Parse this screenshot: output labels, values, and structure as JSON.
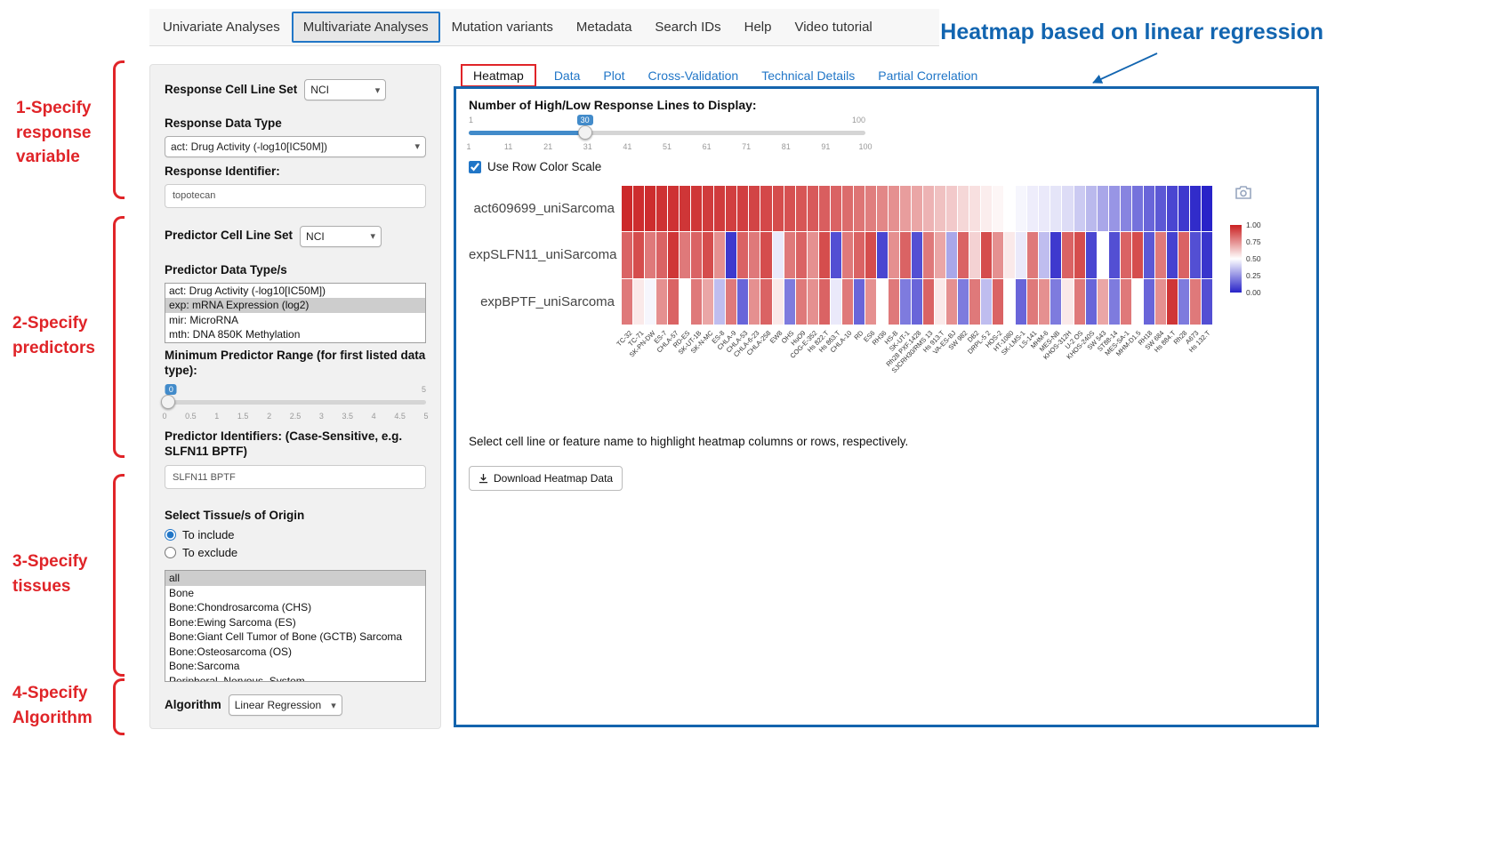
{
  "nav": {
    "items": [
      "Univariate Analyses",
      "Multivariate Analyses",
      "Mutation variants",
      "Metadata",
      "Search IDs",
      "Help",
      "Video tutorial"
    ],
    "active": "Multivariate Analyses"
  },
  "annotations": {
    "heading": "Heatmap based on linear regression",
    "label1": "1-Specify response variable",
    "label2": "2-Specify predictors",
    "label3": "3-Specify tissues",
    "label4": "4-Specify Algorithm",
    "accent_red": "#e02428",
    "accent_blue": "#1265b0"
  },
  "sidebar": {
    "response_cell_line_set": {
      "label": "Response Cell Line Set",
      "value": "NCI"
    },
    "response_data_type": {
      "label": "Response Data Type",
      "value": "act: Drug Activity (-log10[IC50M])"
    },
    "response_identifier": {
      "label": "Response Identifier:",
      "value": "topotecan"
    },
    "predictor_cell_line_set": {
      "label": "Predictor Cell Line Set",
      "value": "NCI"
    },
    "predictor_data_types": {
      "label": "Predictor Data Type/s",
      "options": [
        "act: Drug Activity (-log10[IC50M])",
        "exp: mRNA Expression (log2)",
        "mir: MicroRNA",
        "mth: DNA 850K Methylation"
      ],
      "selected": "exp: mRNA Expression (log2)"
    },
    "min_predictor_range": {
      "label": "Minimum Predictor Range (for first listed data type):",
      "value": "0",
      "min": 0,
      "max": 5,
      "max_label": "5",
      "ticks": [
        "0",
        "0.5",
        "1",
        "1.5",
        "2",
        "2.5",
        "3",
        "3.5",
        "4",
        "4.5",
        "5"
      ]
    },
    "predictor_identifiers": {
      "label": "Predictor Identifiers: (Case-Sensitive, e.g. SLFN11 BPTF)",
      "value": "SLFN11 BPTF"
    },
    "tissues": {
      "label": "Select Tissue/s of Origin",
      "radio_include": "To include",
      "radio_exclude": "To exclude",
      "selected_radio": "To include",
      "options": [
        "all",
        "Bone",
        "Bone:Chondrosarcoma (CHS)",
        "Bone:Ewing Sarcoma (ES)",
        "Bone:Giant Cell Tumor of Bone (GCTB) Sarcoma",
        "Bone:Osteosarcoma (OS)",
        "Bone:Sarcoma",
        "Peripheral_Nervous_System"
      ],
      "selected": "all"
    },
    "algorithm": {
      "label": "Algorithm",
      "value": "Linear Regression"
    }
  },
  "main": {
    "tabs": [
      "Heatmap",
      "Data",
      "Plot",
      "Cross-Validation",
      "Technical Details",
      "Partial Correlation"
    ],
    "active_tab": "Heatmap",
    "slider": {
      "label": "Number of High/Low Response Lines to Display:",
      "min": 1,
      "max": 100,
      "value": 30,
      "min_label": "1",
      "max_label": "100",
      "value_label": "30",
      "ticks": [
        "1",
        "11",
        "21",
        "31",
        "41",
        "51",
        "61",
        "71",
        "81",
        "91",
        "100"
      ]
    },
    "row_color_scale": {
      "label": "Use Row Color Scale",
      "checked": true
    },
    "hint": "Select cell line or feature name to highlight heatmap columns or rows, respectively.",
    "download_button": "Download Heatmap Data"
  },
  "chart_data": {
    "type": "heatmap",
    "rows": [
      "act609699_uniSarcoma",
      "expSLFN11_uniSarcoma",
      "expBPTF_uniSarcoma"
    ],
    "columns": [
      "TC-32",
      "TC-71",
      "SK-PN-DW",
      "ES-7",
      "CHLA-57",
      "RD-ES",
      "SK-UT-1B",
      "SK-N-MC",
      "ES-8",
      "CHLA-9",
      "CHLA-53",
      "CHLA-6-23",
      "CHLA-258",
      "EW8",
      "OHS",
      "HuO9",
      "COG-E-352",
      "Hs 822.T",
      "Hs 863.T",
      "CHLA-10",
      "RD",
      "ES6",
      "RH36",
      "HS-B",
      "SK-UT-1",
      "Rh28 PXF.1428",
      "SJCRH30/RMS 13",
      "Hs 913.T",
      "VA-ES-BJ",
      "SW 982",
      "DB2",
      "DRPL-5 2",
      "HOS-2",
      "HT-1080",
      "SK-LMS-1",
      "LS-141",
      "MHM-6",
      "MES-NB",
      "KHOS-312H",
      "U-2 OS",
      "KHOS-240S",
      "SW 543",
      "ST88-14",
      "MES-SA-1",
      "MHM-D1.5",
      "RH18",
      "SW 684",
      "Hs 884.T",
      "Rh28",
      "A673",
      "Hs 132.T"
    ],
    "values": [
      [
        0.98,
        0.97,
        0.97,
        0.96,
        0.96,
        0.95,
        0.95,
        0.94,
        0.94,
        0.93,
        0.93,
        0.92,
        0.91,
        0.9,
        0.89,
        0.88,
        0.87,
        0.86,
        0.85,
        0.83,
        0.81,
        0.79,
        0.77,
        0.75,
        0.72,
        0.7,
        0.67,
        0.64,
        0.62,
        0.59,
        0.57,
        0.54,
        0.52,
        0.5,
        0.48,
        0.46,
        0.45,
        0.44,
        0.42,
        0.38,
        0.34,
        0.3,
        0.26,
        0.22,
        0.18,
        0.15,
        0.12,
        0.08,
        0.05,
        0.02,
        0.0
      ],
      [
        0.85,
        0.9,
        0.8,
        0.85,
        0.95,
        0.8,
        0.85,
        0.9,
        0.75,
        0.05,
        0.85,
        0.8,
        0.9,
        0.45,
        0.8,
        0.85,
        0.75,
        0.9,
        0.1,
        0.8,
        0.85,
        0.9,
        0.08,
        0.75,
        0.85,
        0.1,
        0.8,
        0.7,
        0.3,
        0.85,
        0.6,
        0.9,
        0.75,
        0.55,
        0.45,
        0.8,
        0.35,
        0.05,
        0.85,
        0.9,
        0.08,
        0.5,
        0.1,
        0.85,
        0.9,
        0.12,
        0.8,
        0.07,
        0.85,
        0.1,
        0.04
      ],
      [
        0.8,
        0.55,
        0.48,
        0.75,
        0.85,
        0.5,
        0.8,
        0.7,
        0.35,
        0.8,
        0.15,
        0.75,
        0.85,
        0.55,
        0.2,
        0.8,
        0.75,
        0.85,
        0.45,
        0.8,
        0.15,
        0.75,
        0.5,
        0.8,
        0.2,
        0.15,
        0.85,
        0.55,
        0.75,
        0.2,
        0.8,
        0.35,
        0.85,
        0.5,
        0.15,
        0.8,
        0.75,
        0.2,
        0.55,
        0.8,
        0.15,
        0.7,
        0.2,
        0.8,
        0.5,
        0.15,
        0.75,
        0.95,
        0.2,
        0.8,
        0.1
      ]
    ],
    "colorbar_ticks": [
      "1.00",
      "0.75",
      "0.50",
      "0.25",
      "0.00"
    ],
    "colormap": {
      "high": "#ca2021",
      "mid": "#ffffff",
      "low": "#2823c8"
    },
    "value_range": [
      0,
      1
    ],
    "legend_position": "right"
  }
}
